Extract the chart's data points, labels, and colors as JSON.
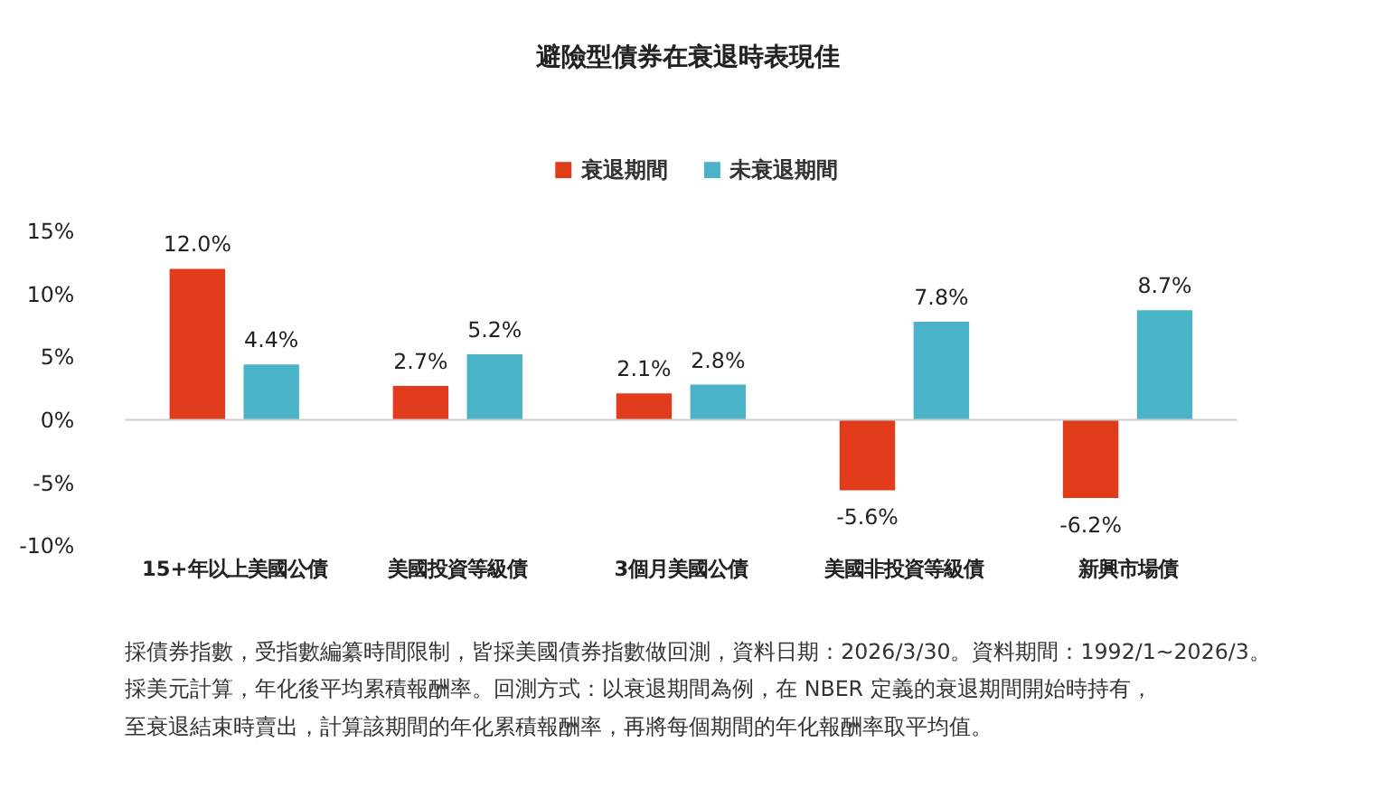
{
  "chart_data": {
    "type": "bar",
    "title": "避險型債券在衰退時表現佳",
    "categories": [
      "15+年以上美國公債",
      "美國投資等級債",
      "3個月美國公債",
      "美國非投資等級債",
      "新興市場債"
    ],
    "series": [
      {
        "name": "衰退期間",
        "color": "#e03c1c",
        "values": [
          12.0,
          2.7,
          2.1,
          -5.6,
          -6.2
        ],
        "value_labels": [
          "12.0%",
          "2.7%",
          "2.1%",
          "-5.6%",
          "-6.2%"
        ]
      },
      {
        "name": "未衰退期間",
        "color": "#4bb3c8",
        "values": [
          4.4,
          5.2,
          2.8,
          7.8,
          8.7
        ],
        "value_labels": [
          "4.4%",
          "5.2%",
          "2.8%",
          "7.8%",
          "8.7%"
        ]
      }
    ],
    "ylim": [
      -10,
      15
    ],
    "yticks": [
      {
        "value": -10,
        "label": "-10%"
      },
      {
        "value": -5,
        "label": "-5%"
      },
      {
        "value": 0,
        "label": "0%"
      },
      {
        "value": 5,
        "label": "5%"
      },
      {
        "value": 10,
        "label": "10%"
      },
      {
        "value": 15,
        "label": "15%"
      }
    ],
    "legend": "top",
    "annotations": [
      "採債券指數，受指數編纂時間限制，皆採美國債券指數做回測，資料日期：2026/3/30。資料期間：1992/1~2026/3。",
      "採美元計算，年化後平均累積報酬率。回測方式：以衰退期間為例，在 NBER 定義的衰退期間開始時持有，",
      "至衰退結束時賣出，計算該期間的年化累積報酬率，再將每個期間的年化報酬率取平均值。"
    ]
  }
}
